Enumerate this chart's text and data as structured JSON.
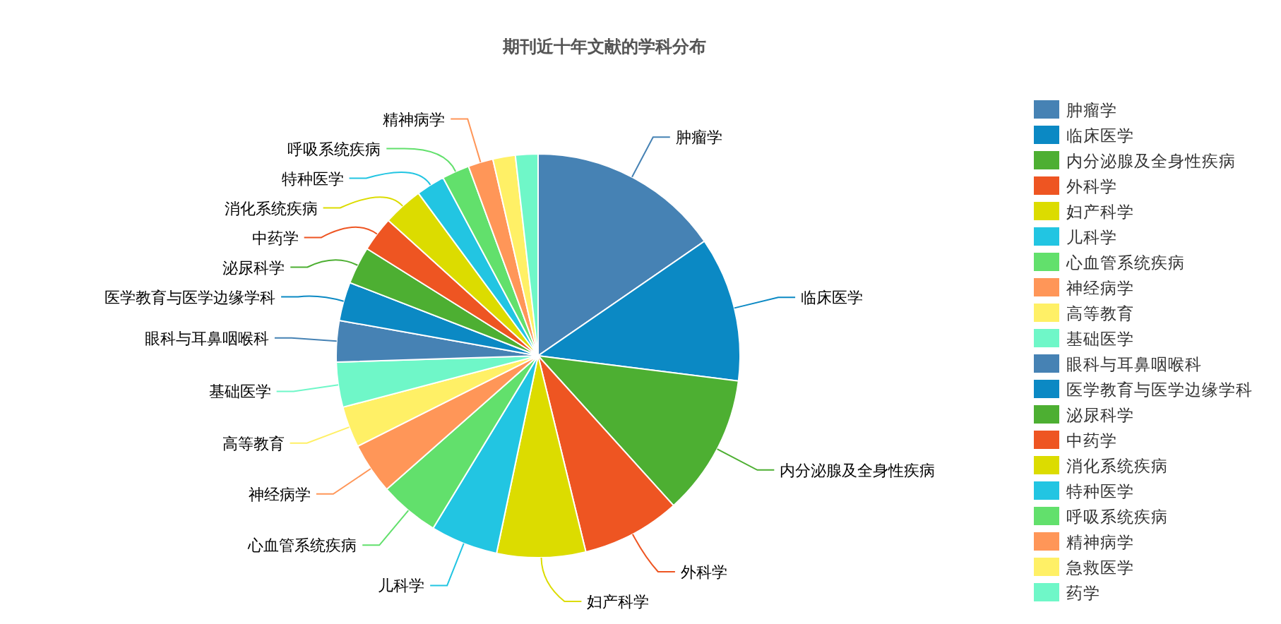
{
  "chart_data": {
    "type": "pie",
    "title": "期刊近十年文献的学科分布",
    "categories": [
      "肿瘤学",
      "临床医学",
      "内分泌腺及全身性疾病",
      "外科学",
      "妇产科学",
      "儿科学",
      "心血管系统疾病",
      "神经病学",
      "高等教育",
      "基础医学",
      "眼科与耳鼻咽喉科",
      "医学教育与医学边缘学科",
      "泌尿科学",
      "中药学",
      "消化系统疾病",
      "特种医学",
      "呼吸系统疾病",
      "精神病学",
      "急救医学",
      "药学"
    ],
    "values": [
      15.4,
      11.6,
      11.3,
      7.9,
      7.1,
      5.4,
      4.8,
      4.1,
      3.3,
      3.6,
      3.3,
      3.1,
      3.0,
      2.8,
      3.2,
      2.3,
      2.2,
      2.0,
      1.8,
      1.8
    ],
    "colors": [
      "#4682b4",
      "#0b89c4",
      "#4daf32",
      "#ee5522",
      "#dcdc00",
      "#22c5e2",
      "#62e06c",
      "#ff9658",
      "#fff066",
      "#6ff7c8",
      "#4682b4",
      "#0b89c4",
      "#4daf32",
      "#ee5522",
      "#dcdc00",
      "#22c5e2",
      "#62e06c",
      "#ff9658",
      "#fff066",
      "#6ff7c8"
    ],
    "legend": "right"
  }
}
